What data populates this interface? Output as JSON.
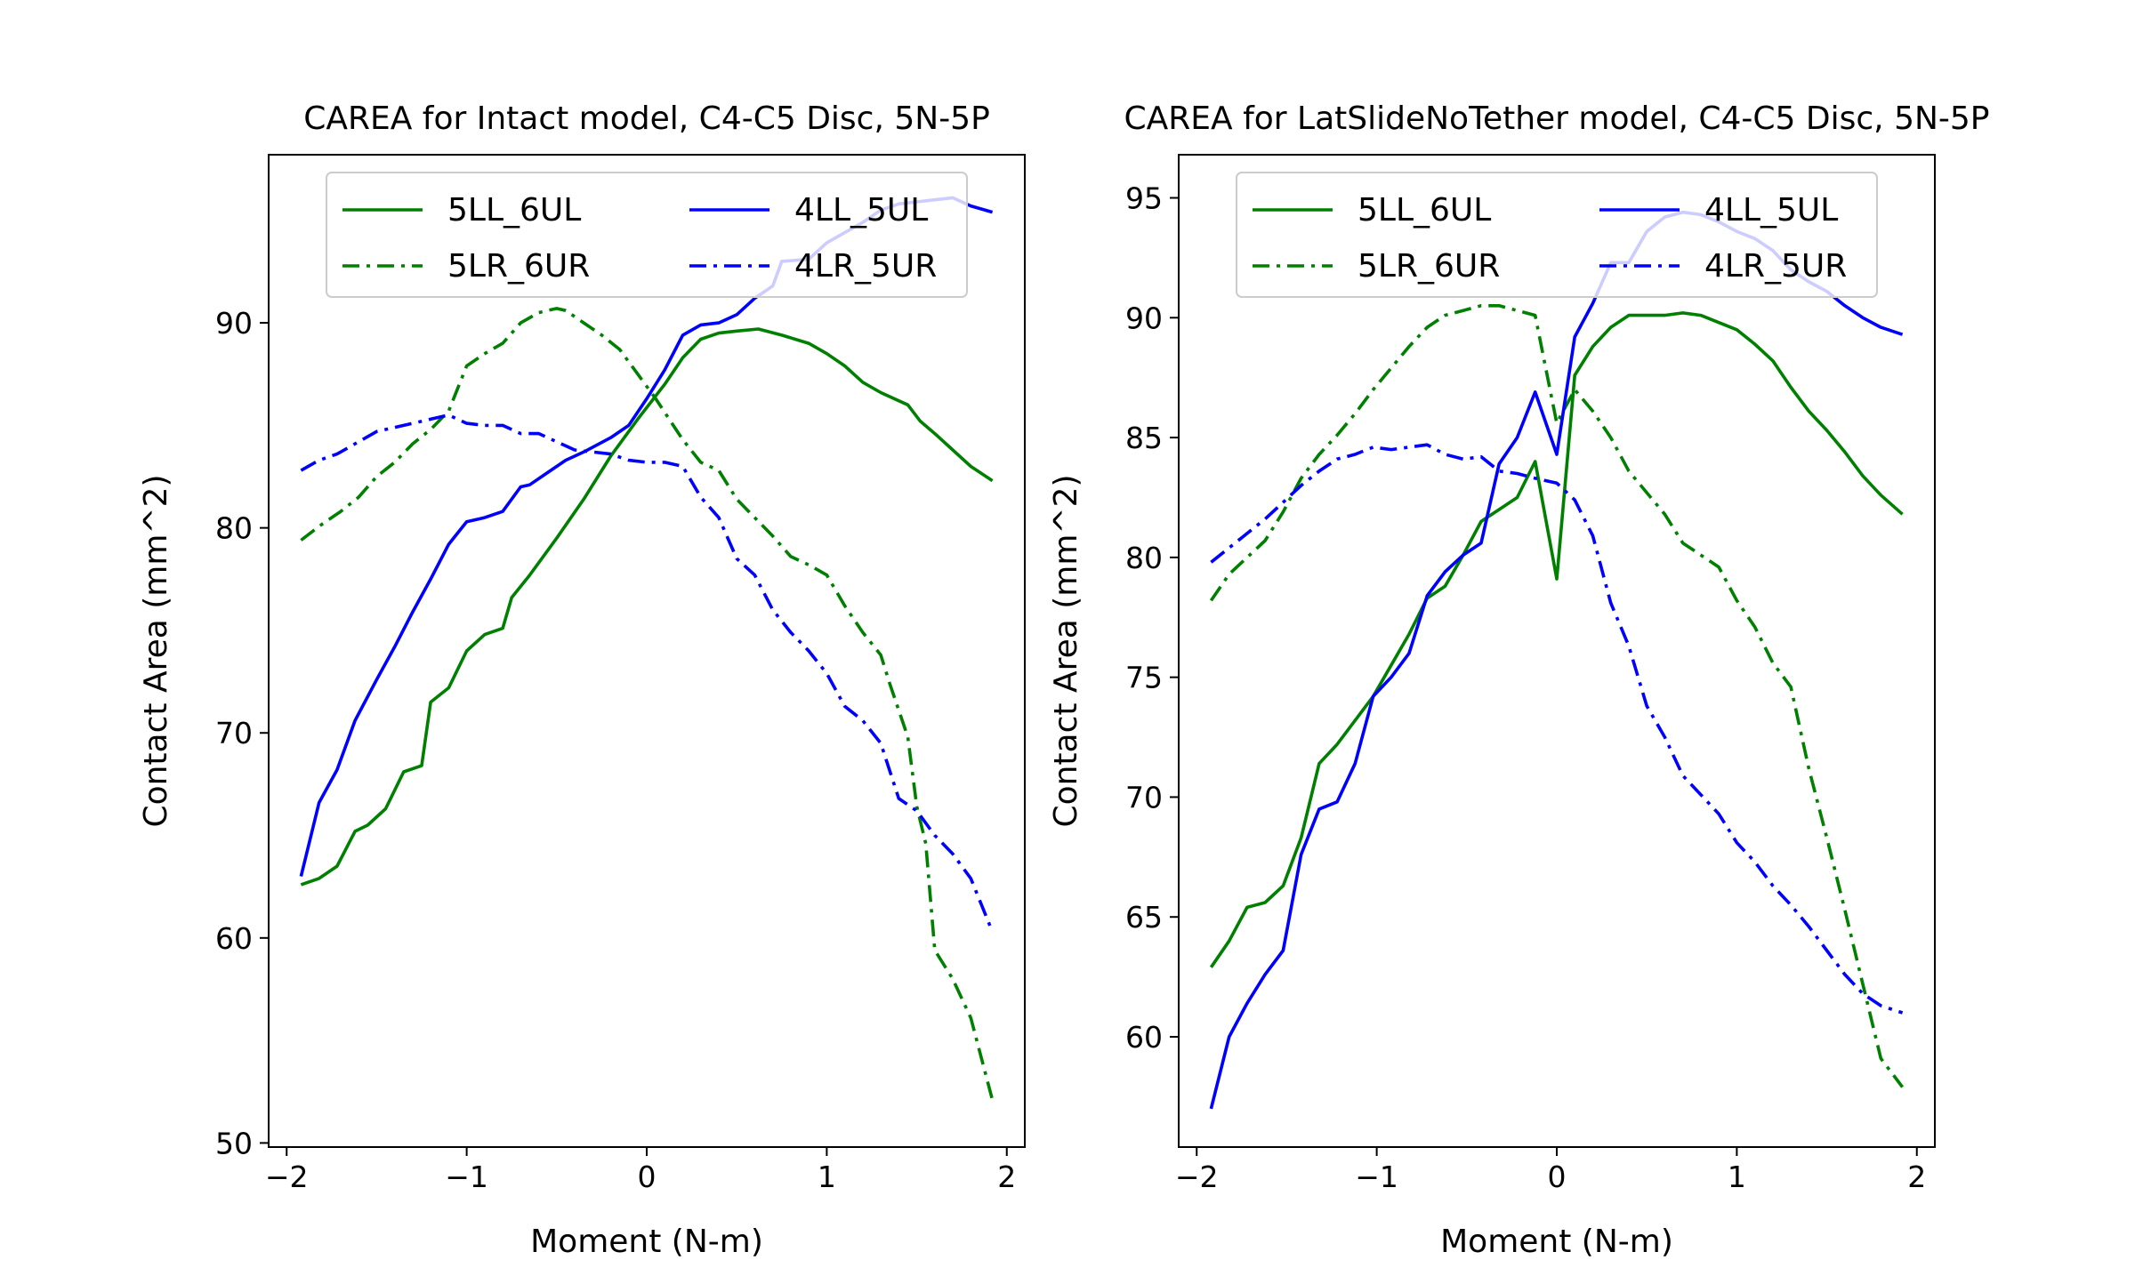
{
  "chart_data": [
    {
      "type": "line",
      "title": "CAREA for Intact model, C4-C5 Disc, 5N-5P",
      "xlabel": "Moment (N-m)",
      "ylabel": "Contact Area (mm^2)",
      "xlim": [
        -2.1,
        2.1
      ],
      "ylim": [
        49.8,
        98.2
      ],
      "xticks": [
        "−2",
        "−1",
        "0",
        "1",
        "2"
      ],
      "yticks": [
        "50",
        "60",
        "70",
        "80",
        "90"
      ],
      "legend": {
        "placement": "upper center",
        "columns": 2
      },
      "series": [
        {
          "name": "5LL_6UL",
          "color": "#008000",
          "style": "solid",
          "x": [
            -1.92,
            -1.82,
            -1.72,
            -1.62,
            -1.55,
            -1.45,
            -1.35,
            -1.25,
            -1.2,
            -1.1,
            -1.0,
            -0.9,
            -0.8,
            -0.75,
            -0.65,
            -0.5,
            -0.35,
            -0.2,
            -0.05,
            0.1,
            0.2,
            0.3,
            0.4,
            0.5,
            0.62,
            0.75,
            0.9,
            1.0,
            1.1,
            1.2,
            1.3,
            1.45,
            1.52,
            1.6,
            1.7,
            1.8,
            1.92
          ],
          "y": [
            62.6,
            62.9,
            63.5,
            65.2,
            65.5,
            66.3,
            68.1,
            68.4,
            71.5,
            72.2,
            74.0,
            74.8,
            75.1,
            76.6,
            77.7,
            79.5,
            81.4,
            83.5,
            85.3,
            87.0,
            88.3,
            89.2,
            89.5,
            89.6,
            89.7,
            89.4,
            89.0,
            88.5,
            87.9,
            87.1,
            86.6,
            86.0,
            85.2,
            84.6,
            83.8,
            83.0,
            82.3
          ]
        },
        {
          "name": "5LR_6UR",
          "color": "#008000",
          "style": "dashdot",
          "x": [
            -1.92,
            -1.8,
            -1.7,
            -1.6,
            -1.5,
            -1.4,
            -1.3,
            -1.2,
            -1.1,
            -1.0,
            -0.9,
            -0.8,
            -0.7,
            -0.6,
            -0.5,
            -0.45,
            -0.35,
            -0.25,
            -0.15,
            -0.05,
            0.05,
            0.2,
            0.3,
            0.4,
            0.5,
            0.6,
            0.7,
            0.8,
            0.9,
            1.0,
            1.1,
            1.2,
            1.3,
            1.35,
            1.45,
            1.5,
            1.55,
            1.6,
            1.7,
            1.8,
            1.92
          ],
          "y": [
            79.4,
            80.2,
            80.8,
            81.5,
            82.5,
            83.2,
            84.1,
            84.8,
            85.7,
            87.9,
            88.5,
            89.0,
            90.0,
            90.5,
            90.7,
            90.6,
            90.0,
            89.4,
            88.7,
            87.5,
            86.3,
            84.3,
            83.2,
            82.8,
            81.4,
            80.5,
            79.6,
            78.6,
            78.2,
            77.7,
            76.2,
            74.9,
            73.8,
            72.4,
            69.8,
            66.4,
            64.6,
            59.4,
            58.0,
            56.1,
            52.1
          ]
        },
        {
          "name": "4LL_5UL",
          "color": "#0000ff",
          "style": "solid",
          "x": [
            -1.92,
            -1.82,
            -1.72,
            -1.62,
            -1.5,
            -1.4,
            -1.3,
            -1.2,
            -1.1,
            -1.0,
            -0.9,
            -0.8,
            -0.7,
            -0.65,
            -0.55,
            -0.45,
            -0.35,
            -0.2,
            -0.1,
            0.0,
            0.1,
            0.2,
            0.3,
            0.4,
            0.5,
            0.6,
            0.7,
            0.75,
            0.9,
            1.0,
            1.1,
            1.2,
            1.3,
            1.4,
            1.5,
            1.6,
            1.7,
            1.8,
            1.92
          ],
          "y": [
            63.0,
            66.6,
            68.2,
            70.6,
            72.6,
            74.2,
            75.9,
            77.5,
            79.2,
            80.3,
            80.5,
            80.8,
            82.0,
            82.1,
            82.7,
            83.3,
            83.7,
            84.4,
            85.0,
            86.3,
            87.7,
            89.4,
            89.9,
            90.0,
            90.4,
            91.2,
            91.8,
            93.0,
            93.1,
            93.9,
            94.4,
            94.9,
            95.5,
            95.8,
            95.9,
            96.0,
            96.1,
            95.7,
            95.4
          ]
        },
        {
          "name": "4LR_5UR",
          "color": "#0000ff",
          "style": "dashdot",
          "x": [
            -1.92,
            -1.82,
            -1.72,
            -1.6,
            -1.5,
            -1.4,
            -1.3,
            -1.2,
            -1.1,
            -1.0,
            -0.9,
            -0.8,
            -0.7,
            -0.6,
            -0.5,
            -0.4,
            -0.3,
            -0.2,
            -0.1,
            0.0,
            0.1,
            0.2,
            0.3,
            0.4,
            0.5,
            0.6,
            0.7,
            0.8,
            0.9,
            1.0,
            1.1,
            1.2,
            1.3,
            1.4,
            1.5,
            1.6,
            1.7,
            1.8,
            1.92
          ],
          "y": [
            82.8,
            83.3,
            83.6,
            84.2,
            84.7,
            84.9,
            85.1,
            85.3,
            85.5,
            85.1,
            85.0,
            85.0,
            84.6,
            84.6,
            84.2,
            83.8,
            83.7,
            83.6,
            83.3,
            83.2,
            83.2,
            83.0,
            81.5,
            80.5,
            78.5,
            77.7,
            76.0,
            74.9,
            74.0,
            72.9,
            71.3,
            70.6,
            69.5,
            66.8,
            66.2,
            65.0,
            64.1,
            62.9,
            60.3
          ]
        }
      ]
    },
    {
      "type": "line",
      "title": "CAREA for LatSlideNoTether model, C4-C5 Disc, 5N-5P",
      "xlabel": "Moment (N-m)",
      "ylabel": "Contact Area (mm^2)",
      "xlim": [
        -2.1,
        2.1
      ],
      "ylim": [
        55.4,
        96.8
      ],
      "xticks": [
        "−2",
        "−1",
        "0",
        "1",
        "2"
      ],
      "yticks": [
        "60",
        "65",
        "70",
        "75",
        "80",
        "85",
        "90",
        "95"
      ],
      "legend": {
        "placement": "upper center",
        "columns": 2
      },
      "series": [
        {
          "name": "5LL_6UL",
          "color": "#008000",
          "style": "solid",
          "x": [
            -1.92,
            -1.82,
            -1.72,
            -1.62,
            -1.52,
            -1.42,
            -1.32,
            -1.22,
            -1.12,
            -1.02,
            -0.92,
            -0.82,
            -0.72,
            -0.62,
            -0.52,
            -0.42,
            -0.32,
            -0.22,
            -0.12,
            0.0,
            0.1,
            0.2,
            0.3,
            0.4,
            0.5,
            0.6,
            0.7,
            0.8,
            0.9,
            1.0,
            1.1,
            1.2,
            1.3,
            1.4,
            1.5,
            1.6,
            1.7,
            1.8,
            1.92
          ],
          "y": [
            62.9,
            64.0,
            65.4,
            65.6,
            66.3,
            68.3,
            71.4,
            72.2,
            73.2,
            74.2,
            75.5,
            76.8,
            78.3,
            78.8,
            80.1,
            81.5,
            82.0,
            82.5,
            84.0,
            79.1,
            87.6,
            88.8,
            89.6,
            90.1,
            90.1,
            90.1,
            90.2,
            90.1,
            89.8,
            89.5,
            88.9,
            88.2,
            87.1,
            86.1,
            85.3,
            84.4,
            83.4,
            82.6,
            81.8
          ]
        },
        {
          "name": "5LR_6UR",
          "color": "#008000",
          "style": "dashdot",
          "x": [
            -1.92,
            -1.82,
            -1.72,
            -1.62,
            -1.52,
            -1.42,
            -1.32,
            -1.22,
            -1.12,
            -1.02,
            -0.92,
            -0.82,
            -0.72,
            -0.62,
            -0.52,
            -0.42,
            -0.32,
            -0.22,
            -0.12,
            0.0,
            0.1,
            0.2,
            0.3,
            0.4,
            0.5,
            0.6,
            0.7,
            0.8,
            0.9,
            1.0,
            1.1,
            1.2,
            1.3,
            1.4,
            1.5,
            1.6,
            1.7,
            1.8,
            1.92
          ],
          "y": [
            78.2,
            79.3,
            80.0,
            80.7,
            81.9,
            83.3,
            84.3,
            85.1,
            86.0,
            87.0,
            87.9,
            88.8,
            89.6,
            90.1,
            90.3,
            90.5,
            90.5,
            90.3,
            90.1,
            85.6,
            87.0,
            86.1,
            85.0,
            83.6,
            82.7,
            81.8,
            80.6,
            80.1,
            79.6,
            78.2,
            77.1,
            75.6,
            74.6,
            71.2,
            68.3,
            65.3,
            62.2,
            59.1,
            57.9
          ]
        },
        {
          "name": "4LL_5UL",
          "color": "#0000ff",
          "style": "solid",
          "x": [
            -1.92,
            -1.82,
            -1.72,
            -1.62,
            -1.52,
            -1.42,
            -1.32,
            -1.22,
            -1.12,
            -1.02,
            -0.92,
            -0.82,
            -0.72,
            -0.62,
            -0.52,
            -0.42,
            -0.32,
            -0.22,
            -0.12,
            0.0,
            0.1,
            0.2,
            0.3,
            0.4,
            0.5,
            0.6,
            0.7,
            0.8,
            0.9,
            1.0,
            1.1,
            1.2,
            1.3,
            1.4,
            1.5,
            1.6,
            1.7,
            1.8,
            1.92
          ],
          "y": [
            57.0,
            60.0,
            61.4,
            62.6,
            63.6,
            67.6,
            69.5,
            69.8,
            71.4,
            74.2,
            75.0,
            76.0,
            78.4,
            79.4,
            80.1,
            80.6,
            83.9,
            85.0,
            86.9,
            84.3,
            89.2,
            90.6,
            92.3,
            92.3,
            93.6,
            94.2,
            94.4,
            94.3,
            94.0,
            93.6,
            93.3,
            92.8,
            92.0,
            91.5,
            91.1,
            90.5,
            90.0,
            89.6,
            89.3
          ]
        },
        {
          "name": "4LR_5UR",
          "color": "#0000ff",
          "style": "dashdot",
          "x": [
            -1.92,
            -1.82,
            -1.72,
            -1.62,
            -1.52,
            -1.42,
            -1.32,
            -1.22,
            -1.12,
            -1.02,
            -0.92,
            -0.82,
            -0.72,
            -0.62,
            -0.52,
            -0.42,
            -0.32,
            -0.22,
            -0.12,
            0.0,
            0.1,
            0.2,
            0.3,
            0.4,
            0.5,
            0.6,
            0.7,
            0.8,
            0.9,
            1.0,
            1.1,
            1.2,
            1.3,
            1.4,
            1.5,
            1.6,
            1.7,
            1.8,
            1.92
          ],
          "y": [
            79.8,
            80.4,
            81.0,
            81.6,
            82.3,
            83.0,
            83.6,
            84.1,
            84.3,
            84.6,
            84.5,
            84.6,
            84.7,
            84.3,
            84.1,
            84.2,
            83.6,
            83.5,
            83.3,
            83.1,
            82.4,
            80.9,
            78.1,
            76.3,
            73.8,
            72.5,
            70.9,
            70.1,
            69.3,
            68.1,
            67.3,
            66.3,
            65.5,
            64.6,
            63.6,
            62.6,
            61.8,
            61.3,
            61.0
          ]
        }
      ]
    }
  ]
}
